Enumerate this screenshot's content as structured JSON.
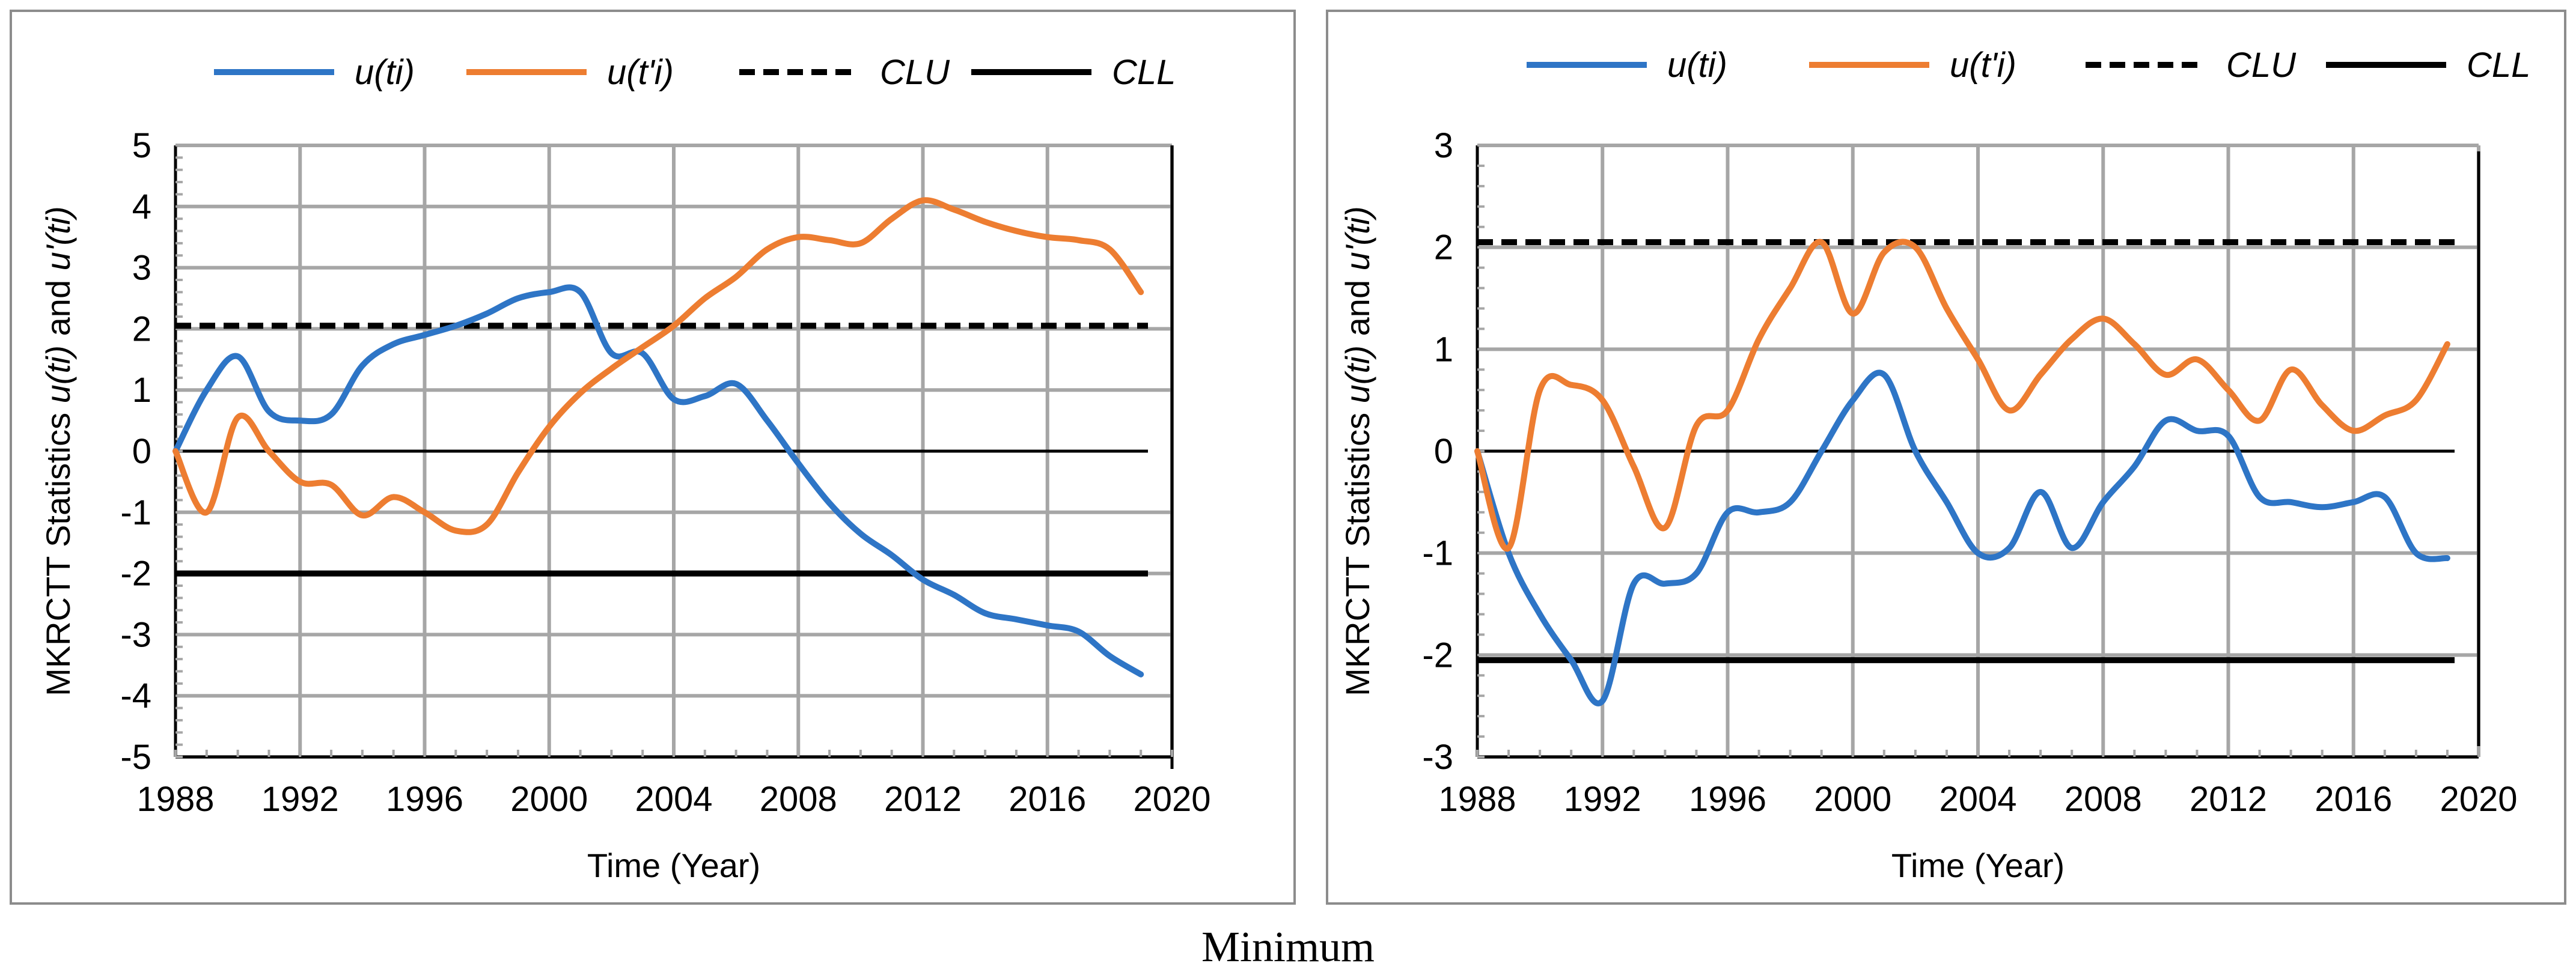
{
  "caption": "Minimum",
  "colors": {
    "u_ti": "#2E75C6",
    "u_tpi": "#ED7D31",
    "limit": "#000000",
    "grid": "#A6A6A6",
    "axis": "#000000"
  },
  "legend": [
    {
      "key": "u_ti",
      "label": "u(ti)",
      "style": "solid",
      "color": "#2E75C6"
    },
    {
      "key": "u_tpi",
      "label": "u(t'i)",
      "style": "solid",
      "color": "#ED7D31"
    },
    {
      "key": "clu",
      "label": "CLU",
      "style": "dashed",
      "color": "#000000"
    },
    {
      "key": "cll",
      "label": "CLL",
      "style": "solid",
      "color": "#000000"
    }
  ],
  "chart_data": [
    {
      "type": "line",
      "title": "",
      "xlabel": "Time (Year)",
      "ylabel_prefix": "MKRCTT Statistics ",
      "ylabel_u1": "u(ti)",
      "ylabel_mid": " and ",
      "ylabel_u2": "u'(ti)",
      "xlim": [
        1988,
        2020
      ],
      "ylim": [
        -5,
        5
      ],
      "xticks": [
        1988,
        1992,
        1996,
        2000,
        2004,
        2008,
        2012,
        2016,
        2020
      ],
      "yticks": [
        -5,
        -4,
        -3,
        -2,
        -1,
        0,
        1,
        2,
        3,
        4,
        5
      ],
      "legend_position": "top",
      "clu": 2.05,
      "cll": -2.0,
      "series": [
        {
          "name": "u(ti)",
          "key": "u_ti",
          "x": [
            1988,
            1989,
            1990,
            1991,
            1992,
            1993,
            1994,
            1995,
            1996,
            1997,
            1998,
            1999,
            2000,
            2001,
            2002,
            2003,
            2004,
            2005,
            2006,
            2007,
            2008,
            2009,
            2010,
            2011,
            2012,
            2013,
            2014,
            2015,
            2016,
            2017,
            2018,
            2019
          ],
          "y": [
            0,
            1.0,
            1.55,
            0.65,
            0.5,
            0.6,
            1.4,
            1.75,
            1.9,
            2.05,
            2.25,
            2.5,
            2.6,
            2.6,
            1.6,
            1.6,
            0.85,
            0.9,
            1.1,
            0.5,
            -0.2,
            -0.85,
            -1.35,
            -1.7,
            -2.1,
            -2.35,
            -2.65,
            -2.75,
            -2.85,
            -2.95,
            -3.35,
            -3.65
          ]
        },
        {
          "name": "u(t'i)",
          "key": "u_tpi",
          "x": [
            1988,
            1989,
            1990,
            1991,
            1992,
            1993,
            1994,
            1995,
            1996,
            1997,
            1998,
            1999,
            2000,
            2001,
            2002,
            2003,
            2004,
            2005,
            2006,
            2007,
            2008,
            2009,
            2010,
            2011,
            2012,
            2013,
            2014,
            2015,
            2016,
            2017,
            2018,
            2019
          ],
          "y": [
            0,
            -1.0,
            0.55,
            0.0,
            -0.5,
            -0.55,
            -1.05,
            -0.75,
            -1.0,
            -1.3,
            -1.2,
            -0.35,
            0.4,
            0.95,
            1.35,
            1.7,
            2.05,
            2.5,
            2.85,
            3.3,
            3.5,
            3.45,
            3.4,
            3.8,
            4.1,
            3.95,
            3.75,
            3.6,
            3.5,
            3.45,
            3.3,
            2.6
          ]
        }
      ]
    },
    {
      "type": "line",
      "title": "",
      "xlabel": "Time (Year)",
      "ylabel_prefix": "MKRCTT Statistics ",
      "ylabel_u1": "u(ti)",
      "ylabel_mid": " and ",
      "ylabel_u2": "u'(ti)",
      "xlim": [
        1988,
        2020
      ],
      "ylim": [
        -3,
        3
      ],
      "xticks": [
        1988,
        1992,
        1996,
        2000,
        2004,
        2008,
        2012,
        2016,
        2020
      ],
      "yticks": [
        -3,
        -2,
        -1,
        0,
        1,
        2,
        3
      ],
      "legend_position": "top",
      "clu": 2.05,
      "cll": -2.05,
      "series": [
        {
          "name": "u(ti)",
          "key": "u_ti",
          "x": [
            1988,
            1989,
            1990,
            1991,
            1992,
            1993,
            1994,
            1995,
            1996,
            1997,
            1998,
            1999,
            2000,
            2001,
            2002,
            2003,
            2004,
            2005,
            2006,
            2007,
            2008,
            2009,
            2010,
            2011,
            2012,
            2013,
            2014,
            2015,
            2016,
            2017,
            2018,
            2019
          ],
          "y": [
            0,
            -1.0,
            -1.6,
            -2.05,
            -2.45,
            -1.3,
            -1.3,
            -1.2,
            -0.6,
            -0.6,
            -0.5,
            0.0,
            0.5,
            0.75,
            0.0,
            -0.5,
            -1.0,
            -0.95,
            -0.4,
            -0.95,
            -0.5,
            -0.15,
            0.3,
            0.2,
            0.15,
            -0.45,
            -0.5,
            -0.55,
            -0.5,
            -0.45,
            -1.0,
            -1.05
          ]
        },
        {
          "name": "u(t'i)",
          "key": "u_tpi",
          "x": [
            1988,
            1989,
            1990,
            1991,
            1992,
            1993,
            1994,
            1995,
            1996,
            1997,
            1998,
            1999,
            2000,
            2001,
            2002,
            2003,
            2004,
            2005,
            2006,
            2007,
            2008,
            2009,
            2010,
            2011,
            2012,
            2013,
            2014,
            2015,
            2016,
            2017,
            2018,
            2019
          ],
          "y": [
            0,
            -0.95,
            0.6,
            0.65,
            0.5,
            -0.15,
            -0.75,
            0.25,
            0.4,
            1.1,
            1.6,
            2.05,
            1.35,
            1.95,
            2.0,
            1.4,
            0.9,
            0.4,
            0.75,
            1.1,
            1.3,
            1.05,
            0.75,
            0.9,
            0.6,
            0.3,
            0.8,
            0.45,
            0.2,
            0.35,
            0.5,
            1.05
          ]
        }
      ]
    }
  ]
}
